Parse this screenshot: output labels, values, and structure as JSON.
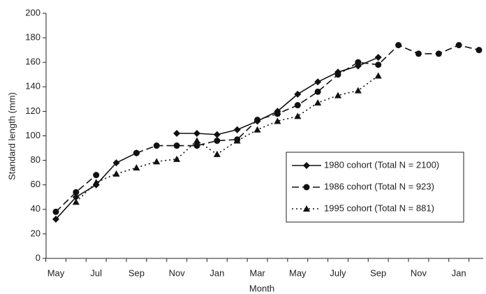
{
  "chart_data": {
    "type": "line",
    "xlabel": "Month",
    "ylabel": "Standard length (mm)",
    "categories": [
      "May",
      null,
      "Jul",
      null,
      "Sep",
      null,
      "Nov",
      null,
      "Jan",
      null,
      "Mar",
      null,
      "May",
      null,
      "July",
      null,
      "Sep",
      null,
      "Nov",
      null,
      "Jan",
      null
    ],
    "series": [
      {
        "name": "1980 cohort (Total N = 2100)",
        "color": "#111111",
        "marker": "diamond",
        "dash": "none",
        "values": [
          32,
          50,
          60,
          78,
          86,
          null,
          102,
          102,
          101,
          105,
          112,
          120,
          134,
          144,
          152,
          157,
          164,
          null,
          null,
          null,
          null,
          null
        ]
      },
      {
        "name": "1986 cohort (Total N = 923)",
        "color": "#111111",
        "marker": "circle",
        "dash": "10 5",
        "values": [
          38,
          54,
          68,
          null,
          86,
          92,
          92,
          92,
          96,
          97,
          113,
          118,
          125,
          136,
          150,
          160,
          158,
          174,
          167,
          167,
          174,
          170
        ]
      },
      {
        "name": "1995 cohort (Total N = 881)",
        "color": "#111111",
        "marker": "triangle",
        "dash": "2 4",
        "values": [
          null,
          46,
          62,
          69,
          74,
          79,
          81,
          96,
          85,
          96,
          105,
          112,
          116,
          127,
          133,
          137,
          149,
          null,
          null,
          null,
          null,
          null
        ]
      }
    ],
    "ylim": [
      0,
      200
    ],
    "yticks": [
      0,
      20,
      40,
      60,
      80,
      100,
      120,
      140,
      160,
      180,
      200
    ],
    "legend": "lower-right"
  }
}
